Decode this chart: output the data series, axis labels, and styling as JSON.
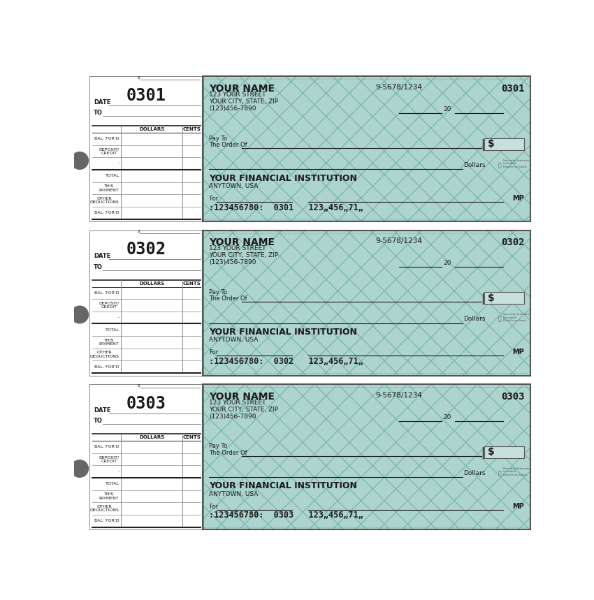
{
  "bg_color": "#ffffff",
  "check_bg": "#aed4ce",
  "check_pattern_color": "#7db8b0",
  "border_color": "#555555",
  "stub_bg": "#ffffff",
  "checks": [
    {
      "number": "0301",
      "micr": ":123456780:  0301   123„456„71„"
    },
    {
      "number": "0302",
      "micr": ":123456780:  0302   123„456„71„"
    },
    {
      "number": "0303",
      "micr": ":123456780:  0303   123„456„71„"
    }
  ],
  "name": "YOUR NAME",
  "street": "123 YOUR STREET",
  "city": "YOUR CITY, STATE, ZIP",
  "phone": "(123)456-7890",
  "routing": "9-5678/1234",
  "pay_to_label": "Pay To",
  "order_label": "The Order Of",
  "dollars_label": "Dollars",
  "bank_name": "YOUR FINANCIAL INSTITUTION",
  "bank_city": "ANYTOWN, USA",
  "for_label": "For",
  "mp_label": "MP",
  "date_label": "DATE",
  "to_label": "TO",
  "dollars_col": "DOLLARS",
  "cents_col": "CENTS",
  "stub_rows": [
    "BAL. FOR'D",
    "DEPOSIT/\nCREDIT",
    "-",
    "TOTAL",
    "THIS\nPAYMENT",
    "OTHER\nDEDUCTIONS",
    "BAL. FOR'D"
  ],
  "s_label": "s",
  "dollar_box_color": "#c8e0dc",
  "security_color": "#555555",
  "text_dark": "#1a1a1a",
  "text_medium": "#444444",
  "stub_line_color": "#888888",
  "stub_heavy_color": "#222222",
  "bullet_color": "#666666"
}
